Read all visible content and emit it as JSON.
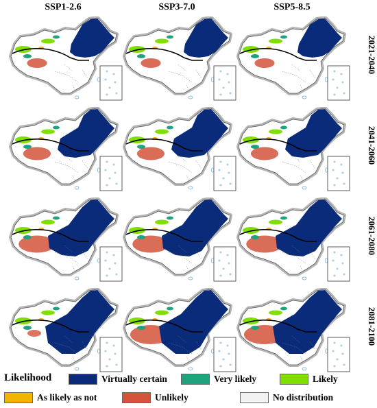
{
  "columns": [
    "SSP1-2.6",
    "SSP3-7.0",
    "SSP5-8.5"
  ],
  "rows": [
    "2021-2040",
    "2041-2060",
    "2061-2080",
    "2081-2100"
  ],
  "legend": {
    "title": "Likelihood",
    "items": [
      {
        "label": "Virtually certain",
        "color": "#0a2a7a"
      },
      {
        "label": "Very likely",
        "color": "#1fa37f"
      },
      {
        "label": "Likely",
        "color": "#7fe000"
      },
      {
        "label": "As likely as not",
        "color": "#f2b400"
      },
      {
        "label": "Unlikely",
        "color": "#d4533a"
      },
      {
        "label": "No distribution",
        "color": "#f2f2f2"
      }
    ]
  },
  "map_data": {
    "panels": [
      {
        "scenario": "SSP1-2.6",
        "period": "2021-2040",
        "extent": "low"
      },
      {
        "scenario": "SSP3-7.0",
        "period": "2021-2040",
        "extent": "low"
      },
      {
        "scenario": "SSP5-8.5",
        "period": "2021-2040",
        "extent": "low"
      },
      {
        "scenario": "SSP1-2.6",
        "period": "2041-2060",
        "extent": "mid"
      },
      {
        "scenario": "SSP3-7.0",
        "period": "2041-2060",
        "extent": "mid"
      },
      {
        "scenario": "SSP5-8.5",
        "period": "2041-2060",
        "extent": "mid"
      },
      {
        "scenario": "SSP1-2.6",
        "period": "2061-2080",
        "extent": "high"
      },
      {
        "scenario": "SSP3-7.0",
        "period": "2061-2080",
        "extent": "high"
      },
      {
        "scenario": "SSP5-8.5",
        "period": "2061-2080",
        "extent": "high"
      },
      {
        "scenario": "SSP1-2.6",
        "period": "2081-2100",
        "extent": "max"
      },
      {
        "scenario": "SSP3-7.0",
        "period": "2081-2100",
        "extent": "max"
      },
      {
        "scenario": "SSP5-8.5",
        "period": "2081-2100",
        "extent": "max"
      }
    ]
  }
}
